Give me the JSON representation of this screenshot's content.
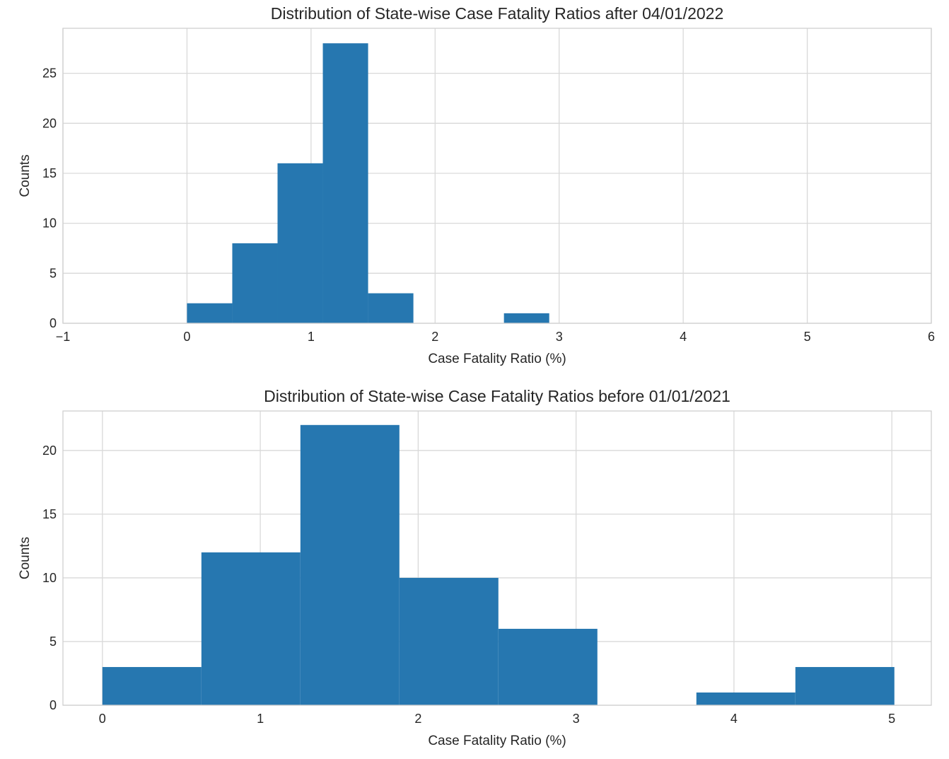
{
  "chart_data": [
    {
      "type": "bar",
      "subtype": "histogram",
      "title": "Distribution of State-wise Case Fatality Ratios after 04/01/2022",
      "xlabel": "Case Fatality Ratio (%)",
      "ylabel": "Counts",
      "xlim": [
        -1,
        6
      ],
      "ylim": [
        0,
        29.5
      ],
      "xticks": [
        "−1",
        "0",
        "1",
        "2",
        "3",
        "4",
        "5",
        "6"
      ],
      "xtick_values": [
        -1,
        0,
        1,
        2,
        3,
        4,
        5,
        6
      ],
      "yticks": [
        "0",
        "5",
        "10",
        "15",
        "20",
        "25"
      ],
      "ytick_values": [
        0,
        5,
        10,
        15,
        20,
        25
      ],
      "bin_edges": [
        0.0,
        0.365,
        0.73,
        1.095,
        1.46,
        1.825,
        2.19,
        2.555,
        2.92
      ],
      "values": [
        2,
        8,
        16,
        28,
        3,
        0,
        0,
        1
      ],
      "grid": true,
      "color": "#2677b0"
    },
    {
      "type": "bar",
      "subtype": "histogram",
      "title": "Distribution of State-wise Case Fatality Ratios before 01/01/2021",
      "xlabel": "Case Fatality Ratio (%)",
      "ylabel": "Counts",
      "xlim": [
        -0.25,
        5.25
      ],
      "ylim": [
        0,
        23.1
      ],
      "xticks": [
        "0",
        "1",
        "2",
        "3",
        "4",
        "5"
      ],
      "xtick_values": [
        0,
        1,
        2,
        3,
        4,
        5
      ],
      "yticks": [
        "0",
        "5",
        "10",
        "15",
        "20"
      ],
      "ytick_values": [
        0,
        5,
        10,
        15,
        20
      ],
      "bin_edges": [
        0.0,
        0.627,
        1.254,
        1.881,
        2.508,
        3.135,
        3.762,
        4.389,
        5.016
      ],
      "values": [
        3,
        12,
        22,
        10,
        6,
        0,
        1,
        3
      ],
      "grid": true,
      "color": "#2677b0"
    }
  ]
}
